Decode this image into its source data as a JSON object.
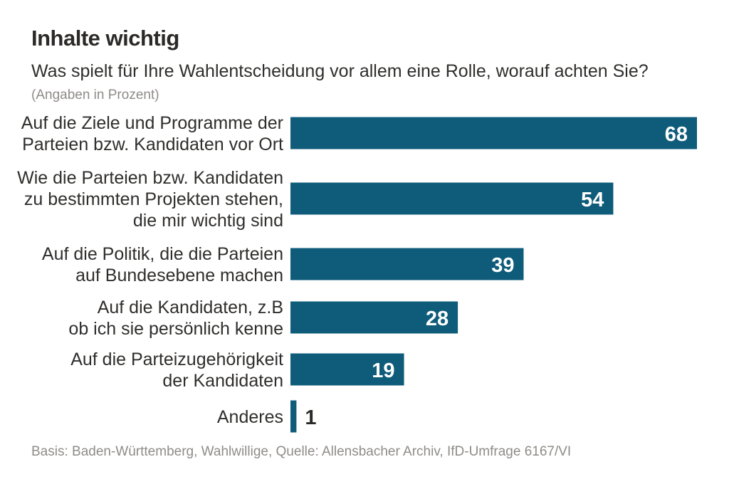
{
  "header": {
    "title": "Inhalte wichtig",
    "subtitle": "Was spielt für Ihre Wahlentscheidung vor allem eine Rolle, worauf achten Sie?",
    "note": "(Angaben in Prozent)"
  },
  "footer": {
    "source": "Basis: Baden-Württemberg, Wahlwillige, Quelle: Allensbacher Archiv, IfD-Umfrage 6167/VI"
  },
  "colors": {
    "bar": "#0e5b7a",
    "text": "#2f2e2c",
    "muted": "#8e8c88"
  },
  "chart_data": {
    "type": "bar",
    "orientation": "horizontal",
    "title": "Inhalte wichtig",
    "subtitle": "Was spielt für Ihre Wahlentscheidung vor allem eine Rolle, worauf achten Sie?",
    "unit": "(Angaben in Prozent)",
    "categories": [
      [
        "Auf die Ziele und Programme der",
        "Parteien bzw. Kandidaten vor Ort"
      ],
      [
        "Wie die Parteien bzw. Kandidaten",
        "zu bestimmten Projekten stehen,",
        "die mir wichtig sind"
      ],
      [
        "Auf die Politik, die die Parteien",
        "auf Bundesebene machen"
      ],
      [
        "Auf die Kandidaten, z.B",
        "ob ich sie persönlich kenne"
      ],
      [
        "Auf die Parteizugehörigkeit",
        "der Kandidaten"
      ],
      [
        "Anderes"
      ]
    ],
    "values": [
      68,
      54,
      39,
      28,
      19,
      1
    ],
    "data_labels": [
      "68",
      "54",
      "39",
      "28",
      "19",
      "1"
    ],
    "xlim": [
      0,
      68
    ],
    "grid": false,
    "legend": "none"
  }
}
